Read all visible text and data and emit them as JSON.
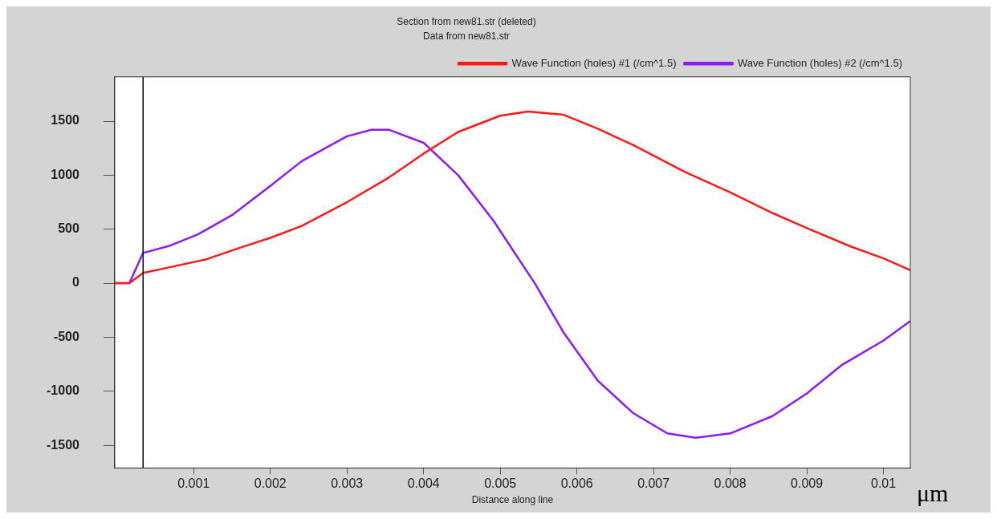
{
  "chart_data": {
    "type": "line",
    "title": "Section from new81.str (deleted)",
    "subtitle": "Data from new81.str",
    "xlabel": "Distance along line",
    "annotations": [
      "μm"
    ],
    "xlim": [
      -3e-05,
      0.01035
    ],
    "xticks": [
      0.001,
      0.002,
      0.003,
      0.004,
      0.005,
      0.006,
      0.007,
      0.008,
      0.009,
      0.01
    ],
    "ylim": [
      -1710,
      1910
    ],
    "yticks": [
      -1500,
      -1000,
      -500,
      0,
      500,
      1000,
      1500
    ],
    "grid": false,
    "legend": "top right",
    "marker": "none",
    "ref_lines": [
      {
        "axis": "x",
        "value": 0.00034,
        "color": "#000000"
      }
    ],
    "series": [
      {
        "name": "Wave Function (holes) #1 (/cm^1.5)",
        "color": "#ff1a1a",
        "x": [
          -3e-05,
          0.00016,
          0.00034,
          0.0007,
          0.00116,
          0.00161,
          0.002,
          0.00241,
          0.003,
          0.00355,
          0.004,
          0.00445,
          0.005,
          0.00536,
          0.00582,
          0.00627,
          0.00673,
          0.00741,
          0.008,
          0.00855,
          0.009,
          0.00957,
          0.01,
          0.01035
        ],
        "values": [
          0,
          0,
          95,
          150,
          220,
          330,
          420,
          530,
          750,
          980,
          1200,
          1400,
          1550,
          1590,
          1560,
          1430,
          1280,
          1030,
          840,
          650,
          510,
          340,
          230,
          120
        ]
      },
      {
        "name": "Wave Function (holes) #2 (/cm^1.5)",
        "color": "#8c1aff",
        "x": [
          -3e-05,
          0.00016,
          0.00034,
          0.0007,
          0.00105,
          0.0015,
          0.002,
          0.00241,
          0.003,
          0.00332,
          0.00355,
          0.004,
          0.00445,
          0.00491,
          0.00545,
          0.00582,
          0.00627,
          0.00673,
          0.00718,
          0.00755,
          0.008,
          0.00855,
          0.009,
          0.00945,
          0.01,
          0.01035
        ],
        "values": [
          0,
          0,
          280,
          350,
          450,
          630,
          900,
          1130,
          1360,
          1420,
          1420,
          1300,
          1000,
          580,
          0,
          -450,
          -900,
          -1200,
          -1390,
          -1430,
          -1390,
          -1230,
          -1020,
          -760,
          -530,
          -350
        ]
      }
    ]
  }
}
